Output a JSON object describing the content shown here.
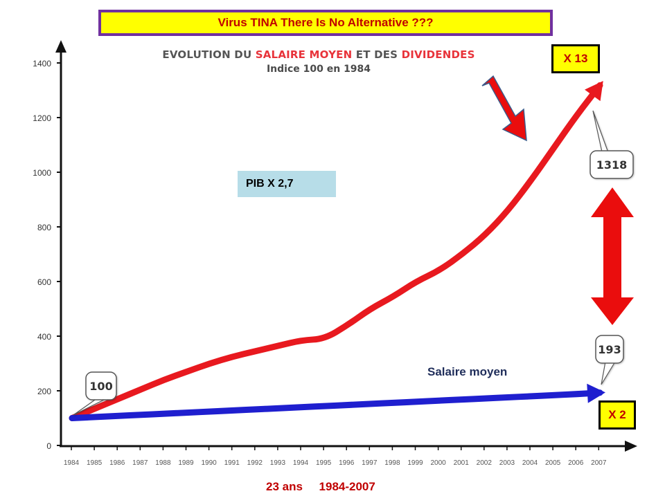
{
  "banner": {
    "text": "Virus TINA  There Is No Alternative ???"
  },
  "chart_data": {
    "type": "line",
    "title_parts": [
      "EVOLUTION DU ",
      "SALAIRE MOYEN",
      " ET DES ",
      "DIVIDENDES"
    ],
    "subtitle": "Indice 100 en 1984",
    "x": [
      "1984",
      "1985",
      "1986",
      "1987",
      "1988",
      "1989",
      "1990",
      "1991",
      "1992",
      "1993",
      "1994",
      "1995",
      "1996",
      "1997",
      "1998",
      "1999",
      "2000",
      "2001",
      "2002",
      "2003",
      "2004",
      "2005",
      "2006",
      "2007"
    ],
    "y_ticks": [
      0,
      200,
      400,
      600,
      800,
      1000,
      1200,
      1400
    ],
    "ylim": [
      0,
      1400
    ],
    "series": [
      {
        "color": "#e8191f",
        "values": [
          100,
          135,
          170,
          205,
          240,
          270,
          300,
          325,
          345,
          365,
          385,
          390,
          440,
          500,
          545,
          600,
          640,
          700,
          770,
          860,
          970,
          1090,
          1210,
          1318
        ]
      },
      {
        "name": "Salaire moyen",
        "color": "#1f1fcf",
        "values": [
          100,
          104,
          108,
          112,
          116,
          120,
          124,
          128,
          132,
          136,
          140,
          144,
          148,
          152,
          156,
          160,
          164,
          168,
          172,
          176,
          180,
          184,
          188,
          193
        ]
      }
    ],
    "data_labels": {
      "start": "100",
      "dividends_end": "1318",
      "salary_end": "193"
    },
    "grid": false
  },
  "annotations": {
    "x13": "X 13",
    "x2": "X 2",
    "pib": "PIB X  2,7",
    "salary_label": "Salaire moyen",
    "footer": "23 ans     1984-2007"
  },
  "colors": {
    "arrow_red": "#ea0d0d",
    "banner_bg": "#ffff00",
    "banner_border": "#7030a0",
    "pib_bg": "#b7dde8"
  }
}
